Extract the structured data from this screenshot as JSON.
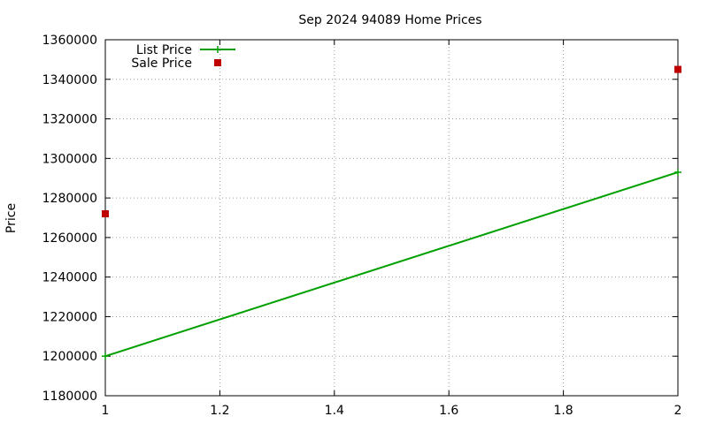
{
  "chart_data": {
    "type": "line",
    "title": "Sep 2024 94089 Home Prices",
    "xlabel": "",
    "ylabel": "Price",
    "xlim": [
      1,
      2
    ],
    "ylim": [
      1180000,
      1360000
    ],
    "grid": true,
    "legend_position": "top-left",
    "x_ticks": [
      "1",
      "1.2",
      "1.4",
      "1.6",
      "1.8",
      "2"
    ],
    "y_ticks": [
      "1180000",
      "1200000",
      "1220000",
      "1240000",
      "1260000",
      "1280000",
      "1300000",
      "1320000",
      "1340000",
      "1360000"
    ],
    "series": [
      {
        "name": "List Price",
        "style": "linespoints",
        "color": "#00a000",
        "x": [
          1,
          2
        ],
        "y": [
          1200000,
          1293000
        ]
      },
      {
        "name": "Sale Price",
        "style": "points",
        "color": "#c00000",
        "x": [
          1,
          2
        ],
        "y": [
          1272000,
          1345000
        ]
      }
    ]
  }
}
